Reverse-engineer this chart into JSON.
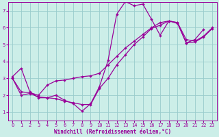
{
  "xlabel": "Windchill (Refroidissement éolien,°C)",
  "xlim": [
    -0.5,
    23.5
  ],
  "ylim": [
    0.5,
    7.5
  ],
  "xticks": [
    0,
    1,
    2,
    3,
    4,
    5,
    6,
    7,
    8,
    9,
    10,
    11,
    12,
    13,
    14,
    15,
    16,
    17,
    18,
    19,
    20,
    21,
    22,
    23
  ],
  "yticks": [
    1,
    2,
    3,
    4,
    5,
    6,
    7
  ],
  "bg_color": "#cceee8",
  "line_color": "#990099",
  "grid_color": "#99cccc",
  "series1_x": [
    0,
    1,
    2,
    3,
    4,
    5,
    6,
    7,
    8,
    9,
    10,
    11,
    12,
    13,
    14,
    15,
    16,
    17,
    18,
    19,
    20,
    21,
    22,
    23
  ],
  "series1_y": [
    3.1,
    3.6,
    2.2,
    1.85,
    1.85,
    2.0,
    1.7,
    1.5,
    1.05,
    1.5,
    2.5,
    4.05,
    6.8,
    7.55,
    7.3,
    7.4,
    6.5,
    5.55,
    6.4,
    6.3,
    5.1,
    5.3,
    5.9,
    null
  ],
  "series2_x": [
    0,
    1,
    2,
    3,
    4,
    5,
    6,
    7,
    8,
    9,
    10,
    11,
    12,
    13,
    14,
    15,
    16,
    17,
    18,
    19,
    20,
    21,
    22,
    23
  ],
  "series2_y": [
    3.0,
    2.2,
    2.15,
    2.0,
    2.6,
    2.85,
    2.9,
    3.0,
    3.1,
    3.15,
    3.3,
    3.8,
    4.3,
    4.8,
    5.2,
    5.6,
    6.0,
    6.3,
    6.4,
    6.3,
    5.3,
    5.2,
    5.5,
    6.0
  ],
  "series3_x": [
    0,
    1,
    2,
    3,
    4,
    5,
    6,
    7,
    8,
    9,
    10,
    11,
    12,
    13,
    14,
    15,
    16,
    17,
    18,
    19,
    20,
    21,
    22,
    23
  ],
  "series3_y": [
    3.0,
    2.0,
    2.1,
    1.9,
    1.85,
    1.8,
    1.65,
    1.55,
    1.45,
    1.45,
    2.4,
    3.0,
    3.8,
    4.4,
    5.0,
    5.45,
    5.95,
    6.15,
    6.4,
    6.25,
    5.1,
    5.15,
    5.45,
    5.95
  ]
}
